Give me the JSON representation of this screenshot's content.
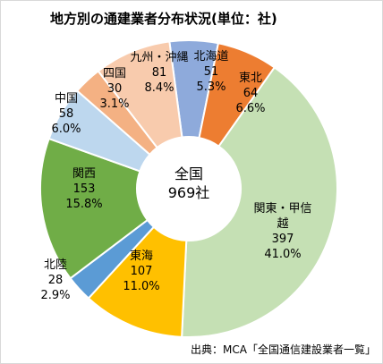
{
  "title": "地方別の通建業者分布状況(単位：社)",
  "source": "出典：MCA「全国通信建設業者一覧」",
  "chart_data": {
    "type": "donut",
    "center_label": [
      "全国",
      "969社"
    ],
    "total": 969,
    "slices": [
      {
        "name": "北海道",
        "value": 51,
        "percent": "5.3%",
        "color": "#8eaadb"
      },
      {
        "name": "東北",
        "value": 64,
        "percent": "6.6%",
        "color": "#ed7d31"
      },
      {
        "name": "関東・甲信越",
        "value": 397,
        "percent": "41.0%",
        "color": "#c5e0b4"
      },
      {
        "name": "東海",
        "value": 107,
        "percent": "11.0%",
        "color": "#ffc000"
      },
      {
        "name": "北陸",
        "value": 28,
        "percent": "2.9%",
        "color": "#5b9bd5"
      },
      {
        "name": "関西",
        "value": 153,
        "percent": "15.8%",
        "color": "#70ad47"
      },
      {
        "name": "中国",
        "value": 58,
        "percent": "6.0%",
        "color": "#bdd7ee"
      },
      {
        "name": "四国",
        "value": 30,
        "percent": "3.1%",
        "color": "#f4b183"
      },
      {
        "name": "九州・沖縄",
        "value": 81,
        "percent": "8.4%",
        "color": "#f8cbad"
      }
    ]
  }
}
